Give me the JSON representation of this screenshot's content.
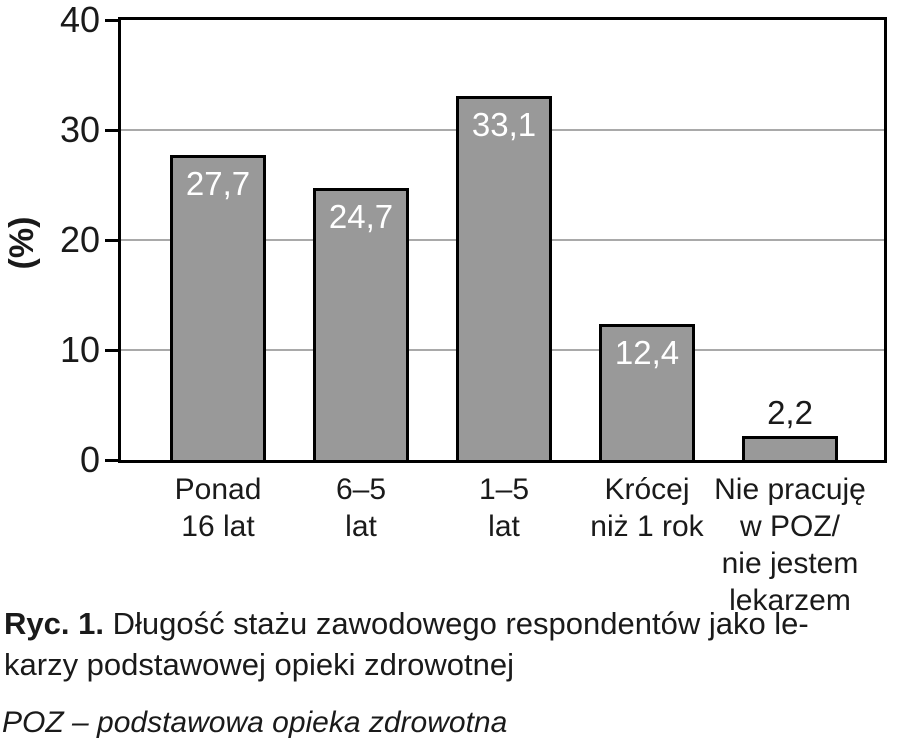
{
  "figure": {
    "caption_prefix": "Ryc. 1.",
    "caption_body": " Długość stażu zawodowego respondentów jako le-\nkarzy podstawowej opieki zdrowotnej",
    "footnote": "POZ – podstawowa opieka zdrowotna"
  },
  "chart_data": {
    "type": "bar",
    "title": "",
    "xlabel": "",
    "ylabel": "(%)",
    "ylim": [
      0,
      40
    ],
    "yticks": [
      40,
      30,
      20,
      10,
      0
    ],
    "grid": "horizontal gridlines at 10, 20, 30",
    "legend": "none",
    "bar_color": "#999999",
    "bar_border_color": "#000000",
    "categories": [
      "Ponad\n16 lat",
      "6–5\nlat",
      "1–5\nlat",
      "Krócej\nniż 1 rok",
      "Nie pracuję\nw POZ/\nnie jestem\nlekarzem"
    ],
    "values": [
      27.7,
      24.7,
      33.1,
      12.4,
      2.2
    ],
    "value_labels": [
      "27,7",
      "24,7",
      "33,1",
      "12,4",
      "2,2"
    ],
    "value_label_placement": [
      "inside",
      "inside",
      "inside",
      "inside",
      "above"
    ]
  }
}
